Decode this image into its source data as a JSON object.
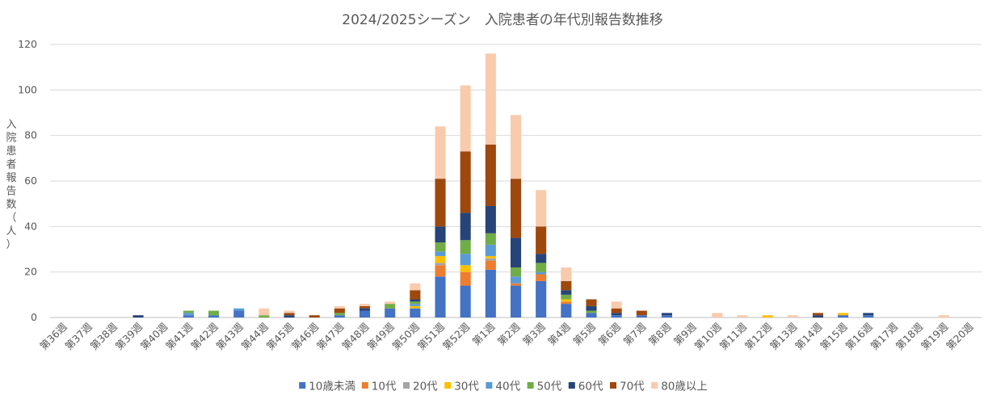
{
  "chart_data": {
    "type": "bar",
    "stacked": true,
    "title": "2024/2025シーズン　入院患者の年代別報告数推移",
    "ylabel": "入院患者報告数（人）",
    "xlabel": "",
    "ylim": [
      0,
      120
    ],
    "yticks": [
      0,
      20,
      40,
      60,
      80,
      100,
      120
    ],
    "grid": true,
    "legend_position": "bottom",
    "categories": [
      "第36週",
      "第37週",
      "第38週",
      "第39週",
      "第40週",
      "第41週",
      "第42週",
      "第43週",
      "第44週",
      "第45週",
      "第46週",
      "第47週",
      "第48週",
      "第49週",
      "第50週",
      "第51週",
      "第52週",
      "第1週",
      "第2週",
      "第3週",
      "第4週",
      "第5週",
      "第6週",
      "第7週",
      "第8週",
      "第9週",
      "第10週",
      "第11週",
      "第12週",
      "第13週",
      "第14週",
      "第15週",
      "第16週",
      "第17週",
      "第18週",
      "第19週",
      "第20週"
    ],
    "series": [
      {
        "name": "10歳未満",
        "color": "#4472C4",
        "values": [
          0,
          0,
          0,
          0,
          0,
          1,
          1,
          3,
          0,
          0,
          0,
          1,
          3,
          4,
          4,
          18,
          14,
          21,
          14,
          16,
          6,
          2,
          1,
          1,
          1,
          0,
          0,
          0,
          0,
          0,
          0,
          1,
          1,
          0,
          0,
          0,
          0
        ]
      },
      {
        "name": "10代",
        "color": "#ED7D31",
        "values": [
          0,
          0,
          0,
          0,
          0,
          0,
          0,
          0,
          0,
          0,
          0,
          0,
          0,
          0,
          0,
          5,
          6,
          4,
          1,
          3,
          1,
          0,
          0,
          0,
          0,
          0,
          0,
          0,
          0,
          0,
          0,
          0,
          0,
          0,
          0,
          0,
          0
        ]
      },
      {
        "name": "20代",
        "color": "#A5A5A5",
        "values": [
          0,
          0,
          0,
          0,
          0,
          0,
          0,
          0,
          0,
          0,
          0,
          0,
          0,
          0,
          0,
          1,
          0,
          1,
          0,
          0,
          0,
          0,
          0,
          0,
          0,
          0,
          0,
          0,
          0,
          0,
          0,
          0,
          0,
          0,
          0,
          0,
          0
        ]
      },
      {
        "name": "30代",
        "color": "#FFC000",
        "values": [
          0,
          0,
          0,
          0,
          0,
          0,
          0,
          0,
          0,
          0,
          0,
          0,
          0,
          0,
          1,
          3,
          3,
          1,
          0,
          0,
          1,
          0,
          0,
          0,
          0,
          0,
          0,
          0,
          1,
          0,
          0,
          1,
          0,
          0,
          0,
          0,
          0
        ]
      },
      {
        "name": "40代",
        "color": "#5B9BD5",
        "values": [
          0,
          0,
          0,
          0,
          0,
          1,
          0,
          1,
          0,
          0,
          0,
          0,
          0,
          0,
          1,
          2,
          5,
          5,
          3,
          1,
          0,
          0,
          0,
          0,
          0,
          0,
          0,
          0,
          0,
          0,
          0,
          0,
          0,
          0,
          0,
          0,
          0
        ]
      },
      {
        "name": "50代",
        "color": "#70AD47",
        "values": [
          0,
          0,
          0,
          0,
          0,
          1,
          2,
          0,
          1,
          0,
          0,
          1,
          0,
          2,
          1,
          4,
          6,
          5,
          4,
          4,
          2,
          1,
          0,
          0,
          0,
          0,
          0,
          0,
          0,
          0,
          0,
          0,
          0,
          0,
          0,
          0,
          0
        ]
      },
      {
        "name": "60代",
        "color": "#264478",
        "values": [
          0,
          0,
          0,
          1,
          0,
          0,
          0,
          0,
          0,
          1,
          0,
          0,
          1,
          0,
          1,
          7,
          12,
          12,
          13,
          4,
          2,
          2,
          1,
          0,
          1,
          0,
          0,
          0,
          0,
          0,
          1,
          0,
          1,
          0,
          0,
          0,
          0
        ]
      },
      {
        "name": "70代",
        "color": "#9E480E",
        "values": [
          0,
          0,
          0,
          0,
          0,
          0,
          0,
          0,
          0,
          1,
          1,
          2,
          1,
          0,
          4,
          21,
          27,
          27,
          26,
          12,
          4,
          3,
          2,
          2,
          0,
          0,
          0,
          0,
          0,
          0,
          1,
          0,
          0,
          0,
          0,
          0,
          0
        ]
      },
      {
        "name": "80歳以上",
        "color": "#F8CBAD",
        "values": [
          0,
          0,
          0,
          0,
          0,
          0,
          0,
          0,
          3,
          1,
          0,
          1,
          1,
          1,
          3,
          23,
          29,
          40,
          28,
          16,
          6,
          0,
          3,
          0,
          0,
          0,
          2,
          1,
          0,
          1,
          0,
          0,
          0,
          0,
          0,
          1,
          0
        ]
      }
    ]
  }
}
